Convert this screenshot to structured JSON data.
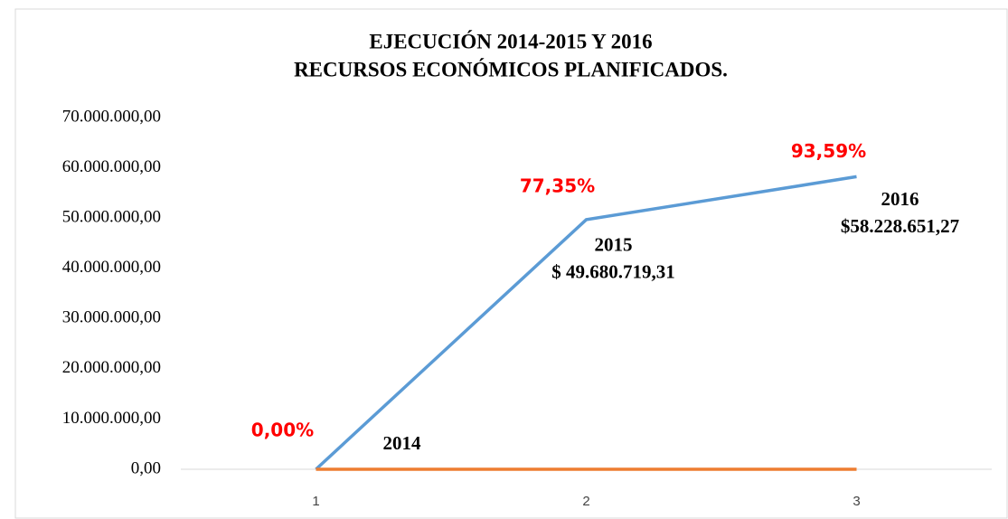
{
  "chart_data": {
    "type": "line",
    "title": [
      "EJECUCIÓN 2014-2015 Y 2016",
      "RECURSOS ECONÓMICOS PLANIFICADOS."
    ],
    "categories": [
      "1",
      "2",
      "3"
    ],
    "series": [
      {
        "color": "#5b9bd5",
        "values": [
          0,
          49680719.31,
          58228651.27
        ]
      },
      {
        "color": "#ed7d31",
        "values": [
          0,
          0,
          0
        ]
      }
    ],
    "ylim": [
      0,
      70000000
    ],
    "yticks": [
      {
        "value": 0,
        "label": "0,00"
      },
      {
        "value": 10000000,
        "label": "10.000.000,00"
      },
      {
        "value": 20000000,
        "label": "20.000.000,00"
      },
      {
        "value": 30000000,
        "label": "30.000.000,00"
      },
      {
        "value": 40000000,
        "label": "40.000.000,00"
      },
      {
        "value": 50000000,
        "label": "50.000.000,00"
      },
      {
        "value": 60000000,
        "label": "60.000.000,00"
      },
      {
        "value": 70000000,
        "label": "70.000.000,00"
      }
    ],
    "grid": false,
    "percent_labels": [
      "0,00%",
      "77,35%",
      "93,59%"
    ],
    "point_labels": [
      [
        "2014"
      ],
      [
        "2015",
        "$ 49.680.719,31"
      ],
      [
        "2016",
        "$58.228.651,27"
      ]
    ]
  }
}
